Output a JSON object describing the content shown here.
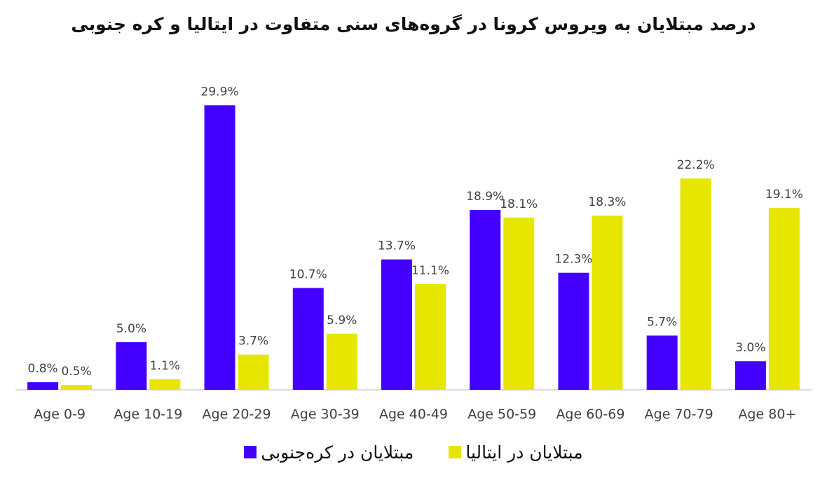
{
  "chart_data": {
    "type": "bar",
    "title": "درصد مبتلایان به ویروس کرونا در گروه‌های سنی متفاوت در ایتالیا و کره جنوبی",
    "categories": [
      "Age 0-9",
      "Age 10-19",
      "Age 20-29",
      "Age 30-39",
      "Age 40-49",
      "Age 50-59",
      "Age 60-69",
      "Age 70-79",
      "Age 80+"
    ],
    "series": [
      {
        "name": "مبتلایان در کره‌جنوبی",
        "color": "#4400ff",
        "values": [
          0.8,
          5.0,
          29.9,
          10.7,
          13.7,
          18.9,
          12.3,
          5.7,
          3.0
        ],
        "labels": [
          "0.8%",
          "5.0%",
          "29.9%",
          "10.7%",
          "13.7%",
          "18.9%",
          "12.3%",
          "5.7%",
          "3.0%"
        ]
      },
      {
        "name": "مبتلایان در ایتالیا",
        "color": "#e6e600",
        "values": [
          0.5,
          1.1,
          3.7,
          5.9,
          11.1,
          18.1,
          18.3,
          22.2,
          19.1
        ],
        "labels": [
          "0.5%",
          "1.1%",
          "3.7%",
          "5.9%",
          "11.1%",
          "18.1%",
          "18.3%",
          "22.2%",
          "19.1%"
        ]
      }
    ],
    "xlabel": "",
    "ylabel": "",
    "ylim": [
      0,
      30
    ],
    "grid": false,
    "legend_position": "bottom"
  }
}
